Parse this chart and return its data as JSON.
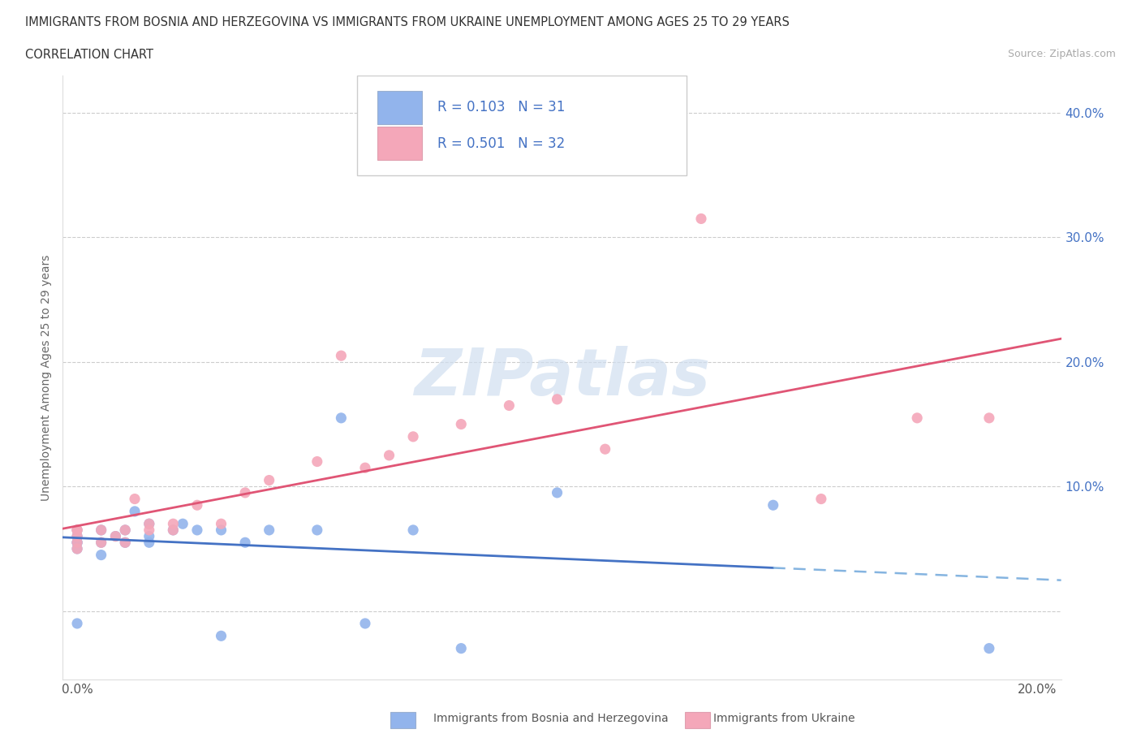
{
  "title_line1": "IMMIGRANTS FROM BOSNIA AND HERZEGOVINA VS IMMIGRANTS FROM UKRAINE UNEMPLOYMENT AMONG AGES 25 TO 29 YEARS",
  "title_line2": "CORRELATION CHART",
  "source_text": "Source: ZipAtlas.com",
  "ylabel": "Unemployment Among Ages 25 to 29 years",
  "xlim": [
    -0.003,
    0.205
  ],
  "ylim": [
    -0.055,
    0.43
  ],
  "x_ticks": [
    0.0,
    0.05,
    0.1,
    0.15,
    0.2
  ],
  "x_tick_labels": [
    "0.0%",
    "",
    "",
    "",
    "20.0%"
  ],
  "y_ticks": [
    0.0,
    0.1,
    0.2,
    0.3,
    0.4
  ],
  "y_tick_labels": [
    "",
    "10.0%",
    "20.0%",
    "30.0%",
    "40.0%"
  ],
  "bosnia_color": "#92b4ec",
  "ukraine_color": "#f4a7b9",
  "bosnia_R": 0.103,
  "bosnia_N": 31,
  "ukraine_R": 0.501,
  "ukraine_N": 32,
  "legend_label_bosnia": "Immigrants from Bosnia and Herzegovina",
  "legend_label_ukraine": "Immigrants from Ukraine",
  "watermark_text": "ZIPatlas",
  "watermark_color": "#d0dff0",
  "bosnia_x": [
    0.0,
    0.0,
    0.0,
    0.0,
    0.0,
    0.0,
    0.005,
    0.005,
    0.005,
    0.008,
    0.01,
    0.01,
    0.012,
    0.015,
    0.015,
    0.015,
    0.02,
    0.022,
    0.025,
    0.03,
    0.03,
    0.035,
    0.04,
    0.05,
    0.055,
    0.06,
    0.07,
    0.08,
    0.1,
    0.145,
    0.19
  ],
  "bosnia_y": [
    0.055,
    0.06,
    0.065,
    0.055,
    0.05,
    -0.01,
    0.065,
    0.055,
    0.045,
    0.06,
    0.065,
    0.055,
    0.08,
    0.07,
    0.06,
    0.055,
    0.065,
    0.07,
    0.065,
    0.065,
    -0.02,
    0.055,
    0.065,
    0.065,
    0.155,
    -0.01,
    0.065,
    -0.03,
    0.095,
    0.085,
    -0.03
  ],
  "ukraine_x": [
    0.0,
    0.0,
    0.0,
    0.0,
    0.0,
    0.005,
    0.005,
    0.008,
    0.01,
    0.01,
    0.012,
    0.015,
    0.015,
    0.02,
    0.02,
    0.025,
    0.03,
    0.035,
    0.04,
    0.05,
    0.055,
    0.06,
    0.065,
    0.07,
    0.08,
    0.09,
    0.1,
    0.11,
    0.13,
    0.155,
    0.175,
    0.19
  ],
  "ukraine_y": [
    0.06,
    0.055,
    0.065,
    0.05,
    0.065,
    0.065,
    0.055,
    0.06,
    0.065,
    0.055,
    0.09,
    0.065,
    0.07,
    0.07,
    0.065,
    0.085,
    0.07,
    0.095,
    0.105,
    0.12,
    0.205,
    0.115,
    0.125,
    0.14,
    0.15,
    0.165,
    0.17,
    0.13,
    0.315,
    0.09,
    0.155,
    0.155
  ],
  "grid_color": "#cccccc",
  "background_color": "#ffffff",
  "trendline_bosnia_solid_color": "#4472c4",
  "trendline_bosnia_dashed_color": "#85b4e0",
  "trendline_ukraine_color": "#e05575",
  "bosnia_trend_solid_end": 0.145,
  "bosnia_trend_dashed_start": 0.145
}
